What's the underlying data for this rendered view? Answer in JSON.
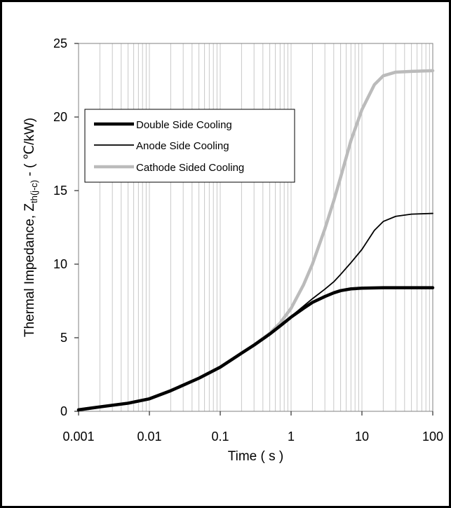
{
  "chart_data": {
    "type": "line",
    "title": "",
    "xlabel": "Time ( s )",
    "ylabel": {
      "prefix": "Thermal Impedance, Z",
      "subscript": "th(j-c)",
      "suffix": " - ( ℃/kW)"
    },
    "x_scale": "log",
    "xlim": [
      0.001,
      100
    ],
    "ylim": [
      0,
      25
    ],
    "x_ticks": [
      "0.001",
      "0.01",
      "0.1",
      "1",
      "10",
      "100"
    ],
    "y_ticks": [
      "0",
      "5",
      "10",
      "15",
      "20",
      "25"
    ],
    "grid": {
      "vertical_minor": true,
      "horizontal": false
    },
    "legend": {
      "position": "top-left",
      "boxed": true
    },
    "series": [
      {
        "name": "Double Side Cooling",
        "color": "#000000",
        "style": "thick",
        "x": [
          0.001,
          0.002,
          0.005,
          0.01,
          0.02,
          0.05,
          0.1,
          0.2,
          0.3,
          0.5,
          0.7,
          1,
          1.5,
          2,
          3,
          4,
          5,
          7,
          10,
          20,
          50,
          100
        ],
        "y": [
          0.1,
          0.3,
          0.55,
          0.85,
          1.4,
          2.25,
          3.0,
          3.95,
          4.5,
          5.25,
          5.8,
          6.4,
          7.0,
          7.4,
          7.8,
          8.05,
          8.2,
          8.32,
          8.37,
          8.4,
          8.4,
          8.4
        ]
      },
      {
        "name": "Anode Side Cooling",
        "color": "#000000",
        "style": "thin",
        "x": [
          0.001,
          0.002,
          0.005,
          0.01,
          0.02,
          0.05,
          0.1,
          0.2,
          0.3,
          0.5,
          0.7,
          1,
          1.5,
          2,
          3,
          4,
          5,
          7,
          10,
          15,
          20,
          30,
          50,
          100
        ],
        "y": [
          0.1,
          0.3,
          0.55,
          0.85,
          1.4,
          2.25,
          3.0,
          3.95,
          4.5,
          5.25,
          5.8,
          6.45,
          7.15,
          7.65,
          8.3,
          8.8,
          9.3,
          10.1,
          11.0,
          12.3,
          12.9,
          13.25,
          13.4,
          13.45
        ]
      },
      {
        "name": "Cathode Sided Cooling",
        "color": "#bbbbbb",
        "style": "thick",
        "x": [
          0.001,
          0.002,
          0.005,
          0.01,
          0.02,
          0.05,
          0.1,
          0.2,
          0.3,
          0.5,
          0.7,
          1,
          1.5,
          2,
          3,
          4,
          5,
          7,
          10,
          15,
          20,
          30,
          50,
          100
        ],
        "y": [
          0.1,
          0.3,
          0.55,
          0.85,
          1.4,
          2.25,
          3.0,
          3.95,
          4.5,
          5.3,
          6.0,
          7.0,
          8.6,
          10.0,
          12.4,
          14.3,
          15.9,
          18.4,
          20.5,
          22.2,
          22.8,
          23.05,
          23.1,
          23.15
        ]
      }
    ]
  }
}
